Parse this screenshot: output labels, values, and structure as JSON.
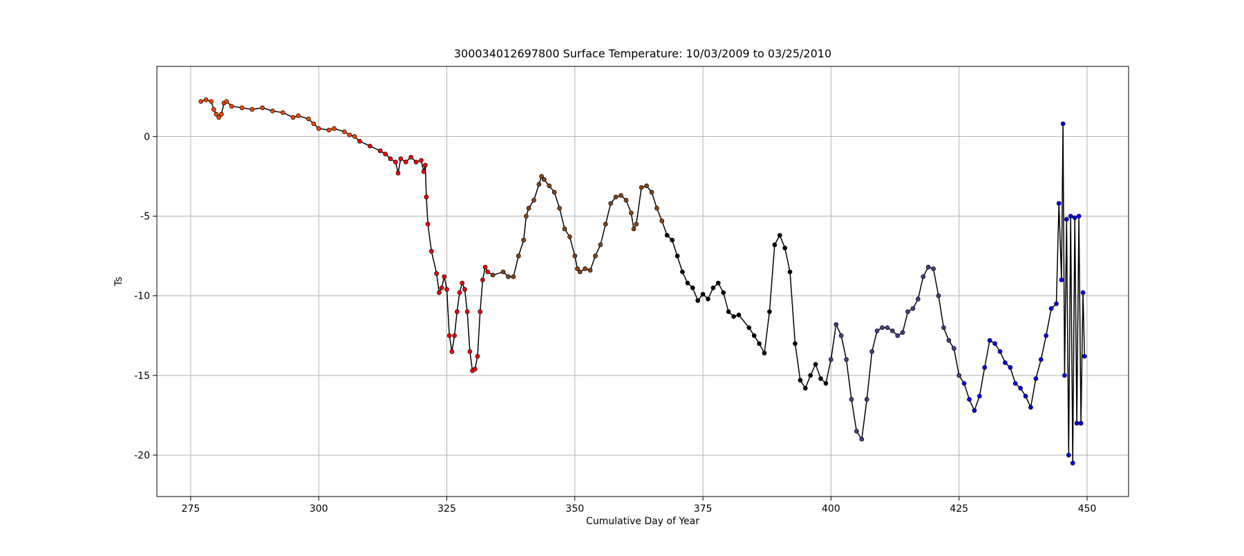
{
  "chart_data": {
    "type": "line",
    "title": "300034012697800 Surface Temperature: 10/03/2009 to 03/25/2010",
    "x_label": "Cumulative Day of Year",
    "y_label": "Ts",
    "xlim": [
      268.4,
      458.1
    ],
    "ylim": [
      -22.6,
      4.4
    ],
    "xticks": [
      275,
      300,
      325,
      350,
      375,
      400,
      425,
      450
    ],
    "yticks": [
      0,
      -5,
      -10,
      -15,
      -20
    ],
    "grid": true,
    "line_color": "#000000",
    "series": [
      {
        "color": "#ff4500",
        "x": [
          277,
          278,
          279,
          279.5,
          280,
          280.5,
          281,
          281.5,
          282,
          283,
          285,
          287,
          289,
          291,
          293,
          295,
          296,
          298,
          299,
          300,
          302,
          303,
          305,
          306,
          307
        ],
        "values": [
          2.2,
          2.3,
          2.2,
          1.7,
          1.4,
          1.2,
          1.4,
          2.1,
          2.2,
          1.9,
          1.8,
          1.7,
          1.8,
          1.6,
          1.5,
          1.2,
          1.3,
          1.1,
          0.8,
          0.5,
          0.4,
          0.5,
          0.3,
          0.1,
          0.0
        ]
      },
      {
        "color": "#ff0000",
        "x": [
          308,
          310,
          312,
          313,
          314,
          315,
          315.5,
          316,
          317,
          318,
          319,
          320,
          320.5,
          320.8,
          321,
          321.3,
          322,
          323,
          323.5,
          324,
          324.5,
          325,
          325.5,
          326,
          326.5,
          327,
          327.5,
          328,
          328.5,
          329,
          329.5,
          330,
          330.5,
          331,
          331.5,
          332,
          332.5,
          333
        ],
        "values": [
          -0.3,
          -0.6,
          -0.9,
          -1.1,
          -1.4,
          -1.6,
          -2.3,
          -1.4,
          -1.6,
          -1.3,
          -1.6,
          -1.5,
          -2.2,
          -1.8,
          -3.8,
          -5.5,
          -7.2,
          -8.6,
          -9.8,
          -9.5,
          -8.8,
          -9.6,
          -12.5,
          -13.5,
          -12.5,
          -11,
          -9.8,
          -9.2,
          -9.6,
          -11,
          -13.5,
          -14.7,
          -14.6,
          -13.8,
          -11,
          -9,
          -8.2,
          -8.5
        ]
      },
      {
        "color": "#8b4513",
        "x": [
          334,
          336,
          337,
          338,
          339,
          340,
          340.5,
          341,
          342,
          343,
          343.5,
          344,
          345,
          346,
          347,
          348,
          349,
          350,
          350.5,
          351,
          352,
          353,
          354,
          355,
          356,
          357,
          358,
          359,
          360,
          361,
          361.5,
          362,
          363,
          364,
          365,
          366,
          367
        ],
        "values": [
          -8.7,
          -8.5,
          -8.8,
          -8.8,
          -7.5,
          -6.5,
          -5,
          -4.5,
          -4,
          -3,
          -2.5,
          -2.7,
          -3.1,
          -3.5,
          -4.5,
          -5.8,
          -6.3,
          -7.5,
          -8.3,
          -8.5,
          -8.3,
          -8.4,
          -7.5,
          -6.8,
          -5.5,
          -4.2,
          -3.8,
          -3.7,
          -4,
          -4.8,
          -5.8,
          -5.5,
          -3.2,
          -3.1,
          -3.5,
          -4.5,
          -5.3
        ]
      },
      {
        "color": "#000000",
        "x": [
          368,
          369,
          370,
          371,
          372,
          373,
          374,
          375,
          376,
          377,
          378,
          379,
          380,
          381,
          382,
          384,
          385,
          386,
          387,
          388,
          389,
          390,
          391,
          392,
          393,
          394,
          395,
          396,
          397,
          398,
          399
        ],
        "values": [
          -6.2,
          -6.5,
          -7.5,
          -8.5,
          -9.2,
          -9.5,
          -10.3,
          -9.9,
          -10.2,
          -9.5,
          -9.2,
          -9.8,
          -11,
          -11.3,
          -11.2,
          -12,
          -12.5,
          -13,
          -13.6,
          -11,
          -6.8,
          -6.2,
          -7,
          -8.5,
          -13,
          -15.3,
          -15.8,
          -15,
          -14.3,
          -15.2,
          -15.5
        ]
      },
      {
        "color": "#483d8b",
        "x": [
          400,
          401,
          402,
          403,
          404,
          405,
          406,
          407,
          408,
          409,
          410,
          411,
          412,
          413,
          414,
          415,
          416,
          417,
          418,
          419,
          420,
          421,
          422,
          423,
          424,
          425
        ],
        "values": [
          -14,
          -11.8,
          -12.5,
          -14,
          -16.5,
          -18.5,
          -19,
          -16.5,
          -13.5,
          -12.2,
          -12,
          -12,
          -12.2,
          -12.5,
          -12.3,
          -11,
          -10.8,
          -10.2,
          -8.8,
          -8.2,
          -8.3,
          -10,
          -12,
          -12.8,
          -13.3,
          -15
        ]
      },
      {
        "color": "#0000ff",
        "x": [
          426,
          427,
          428,
          429,
          430,
          431,
          432,
          433,
          434,
          435,
          436,
          437,
          438,
          439,
          440,
          441,
          442,
          443,
          444,
          444.5,
          445,
          445.3,
          445.6,
          446,
          446.4,
          446.8,
          447.2,
          447.6,
          448,
          448.4,
          448.8,
          449.2,
          449.5
        ],
        "values": [
          -15.5,
          -16.5,
          -17.2,
          -16.3,
          -14.5,
          -12.8,
          -13,
          -13.5,
          -14.2,
          -14.5,
          -15.5,
          -15.8,
          -16.3,
          -17,
          -15.2,
          -14,
          -12.5,
          -10.8,
          -10.5,
          -4.2,
          -9,
          0.8,
          -15,
          -5.2,
          -20,
          -5,
          -20.5,
          -5.1,
          -18,
          -5,
          -18,
          -9.8,
          -13.8
        ]
      }
    ]
  }
}
